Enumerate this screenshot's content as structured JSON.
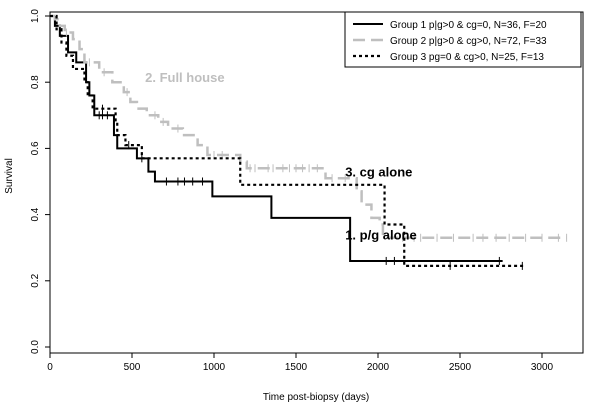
{
  "chart_data": {
    "type": "line",
    "step": true,
    "xlabel": "Time post-biopsy (days)",
    "ylabel": "Survival",
    "xlim": [
      0,
      3250
    ],
    "ylim": [
      0,
      1.0
    ],
    "xticks": [
      0,
      500,
      1000,
      1500,
      2000,
      2500,
      3000
    ],
    "yticks": [
      0.0,
      0.2,
      0.4,
      0.6,
      0.8,
      1.0
    ],
    "xtick_labels": [
      "0",
      "500",
      "1000",
      "1500",
      "2000",
      "2500",
      "3000"
    ],
    "ytick_labels": [
      "0.0",
      "0.2",
      "0.4",
      "0.6",
      "0.8",
      "1.0"
    ],
    "grid": false,
    "legend_position": "top-right",
    "series": [
      {
        "name": "Group 1 p|g>0 & cg=0, N=36, F=20",
        "color": "#000000",
        "style": "solid",
        "steps": [
          [
            0,
            1.0
          ],
          [
            30,
            0.97
          ],
          [
            60,
            0.94
          ],
          [
            110,
            0.89
          ],
          [
            160,
            0.86
          ],
          [
            220,
            0.8
          ],
          [
            240,
            0.76
          ],
          [
            270,
            0.7
          ],
          [
            390,
            0.64
          ],
          [
            410,
            0.6
          ],
          [
            530,
            0.57
          ],
          [
            600,
            0.53
          ],
          [
            640,
            0.5
          ],
          [
            990,
            0.455
          ],
          [
            1350,
            0.39
          ],
          [
            1830,
            0.26
          ],
          [
            2760,
            0.26
          ]
        ],
        "censor_x": [
          300,
          320,
          350,
          560,
          710,
          780,
          820,
          870,
          930,
          2050,
          2100,
          2740
        ]
      },
      {
        "name": "Group 2 p|g>0 & cg>0, N=72, F=33",
        "color": "#bfbfbf",
        "style": "dashed",
        "steps": [
          [
            0,
            1.0
          ],
          [
            30,
            0.99
          ],
          [
            60,
            0.97
          ],
          [
            90,
            0.95
          ],
          [
            140,
            0.93
          ],
          [
            180,
            0.9
          ],
          [
            210,
            0.86
          ],
          [
            300,
            0.83
          ],
          [
            380,
            0.8
          ],
          [
            450,
            0.77
          ],
          [
            490,
            0.74
          ],
          [
            530,
            0.72
          ],
          [
            590,
            0.7
          ],
          [
            660,
            0.68
          ],
          [
            720,
            0.66
          ],
          [
            810,
            0.64
          ],
          [
            900,
            0.61
          ],
          [
            960,
            0.58
          ],
          [
            1160,
            0.56
          ],
          [
            1200,
            0.54
          ],
          [
            1680,
            0.51
          ],
          [
            1870,
            0.47
          ],
          [
            1900,
            0.43
          ],
          [
            1960,
            0.39
          ],
          [
            2010,
            0.37
          ],
          [
            2030,
            0.33
          ],
          [
            3150,
            0.33
          ]
        ],
        "censor_x": [
          100,
          240,
          330,
          470,
          640,
          690,
          780,
          1000,
          1050,
          1220,
          1250,
          1330,
          1360,
          1420,
          1460,
          1500,
          1540,
          1580,
          1630,
          1720,
          1800,
          2150,
          2220,
          2260,
          2360,
          2460,
          2580,
          2640,
          2720,
          2800,
          2900,
          3000,
          3100,
          3150
        ]
      },
      {
        "name": "Group 3 pg=0 & cg>0, N=25, F=13",
        "color": "#000000",
        "style": "dotted",
        "steps": [
          [
            0,
            1.0
          ],
          [
            40,
            0.96
          ],
          [
            70,
            0.92
          ],
          [
            100,
            0.88
          ],
          [
            140,
            0.84
          ],
          [
            210,
            0.8
          ],
          [
            230,
            0.76
          ],
          [
            260,
            0.72
          ],
          [
            400,
            0.68
          ],
          [
            410,
            0.64
          ],
          [
            460,
            0.61
          ],
          [
            560,
            0.57
          ],
          [
            1160,
            0.49
          ],
          [
            2040,
            0.37
          ],
          [
            2160,
            0.245
          ],
          [
            2900,
            0.245
          ]
        ],
        "censor_x": [
          320,
          480,
          2440,
          2880
        ]
      }
    ],
    "annotations": [
      {
        "text": "2. Full house",
        "x": 580,
        "y": 0.8,
        "color": "#bfbfbf"
      },
      {
        "text": "3. cg alone",
        "x": 1800,
        "y": 0.515,
        "color": "#000000"
      },
      {
        "text": "1. p/g alone",
        "x": 1800,
        "y": 0.325,
        "color": "#000000"
      }
    ]
  }
}
